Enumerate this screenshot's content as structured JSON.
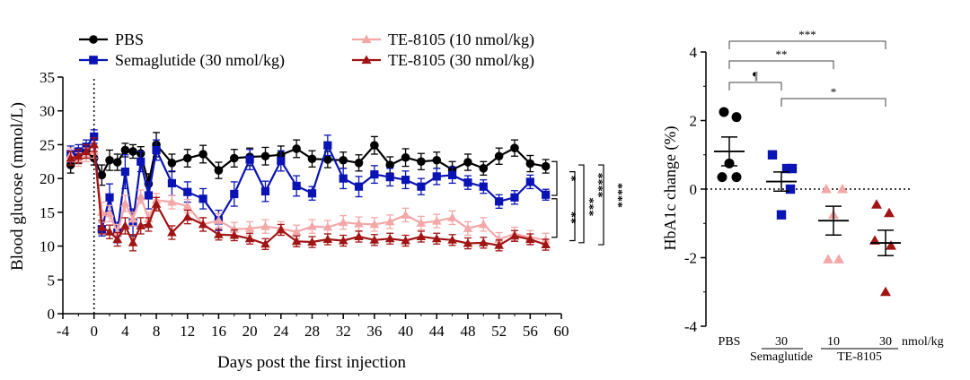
{
  "chart_data": [
    {
      "type": "line",
      "title": "",
      "xlabel": "Days post the first injection",
      "ylabel": "Blood glucose (mmol/L)",
      "xlim": [
        -4,
        60
      ],
      "ylim": [
        0,
        35
      ],
      "xticks": [
        "-4",
        "0",
        "4",
        "8",
        "12",
        "16",
        "20",
        "24",
        "28",
        "32",
        "36",
        "40",
        "44",
        "48",
        "52",
        "56",
        "60"
      ],
      "yticks": [
        "0",
        "5",
        "10",
        "15",
        "20",
        "25",
        "30",
        "35"
      ],
      "x": [
        -3,
        -2,
        -1,
        0,
        1,
        2,
        3,
        4,
        5,
        6,
        7,
        8,
        10,
        12,
        14,
        16,
        18,
        20,
        22,
        24,
        26,
        28,
        30,
        32,
        34,
        36,
        38,
        40,
        42,
        44,
        46,
        48,
        50,
        52,
        54,
        56,
        58
      ],
      "series": [
        {
          "name": "PBS",
          "color": "#000000",
          "marker": "circle",
          "values": [
            22.0,
            23.2,
            24.0,
            23.0,
            20.5,
            22.7,
            22.4,
            24.2,
            24.0,
            23.7,
            19.2,
            25.0,
            22.3,
            23.0,
            23.6,
            21.2,
            23.0,
            23.2,
            23.3,
            23.5,
            24.4,
            22.9,
            22.8,
            22.7,
            22.3,
            24.9,
            22.0,
            23.1,
            22.5,
            22.7,
            21.3,
            22.4,
            21.5,
            23.3,
            24.5,
            22.2,
            21.8
          ],
          "err": [
            1.2,
            1.0,
            1.0,
            1.0,
            1.5,
            1.5,
            1.2,
            1.0,
            1.0,
            1.0,
            1.5,
            1.8,
            1.3,
            1.3,
            1.3,
            1.2,
            1.3,
            1.3,
            1.3,
            1.3,
            1.3,
            1.2,
            1.2,
            1.2,
            1.2,
            1.3,
            1.2,
            1.3,
            1.2,
            1.2,
            1.2,
            1.2,
            1.0,
            1.2,
            1.2,
            1.2,
            1.0
          ]
        },
        {
          "name": "Semaglutide (30 nmol/kg)",
          "color": "#0a14b4",
          "marker": "square",
          "values": [
            23.6,
            24.0,
            24.7,
            26.2,
            12.5,
            17.2,
            12.0,
            21.0,
            13.5,
            22.5,
            17.5,
            24.2,
            19.3,
            18.0,
            17.0,
            13.8,
            17.7,
            22.8,
            18.1,
            22.6,
            18.9,
            17.8,
            24.9,
            20.0,
            18.8,
            20.6,
            20.2,
            19.8,
            18.8,
            20.3,
            20.5,
            19.4,
            18.8,
            16.6,
            17.2,
            19.5,
            17.6
          ],
          "err": [
            1.2,
            1.0,
            1.0,
            1.0,
            1.0,
            2.0,
            1.5,
            2.5,
            2.0,
            1.5,
            2.0,
            1.5,
            1.8,
            1.5,
            1.5,
            1.5,
            1.8,
            1.5,
            1.5,
            1.5,
            1.5,
            1.0,
            1.5,
            1.5,
            1.5,
            1.3,
            1.3,
            1.3,
            1.2,
            1.2,
            1.2,
            1.0,
            1.0,
            1.0,
            1.0,
            1.0,
            0.8
          ]
        },
        {
          "name": "TE-8105 (10 nmol/kg)",
          "color": "#f4a7a7",
          "marker": "triangle",
          "values": [
            23.5,
            22.8,
            23.5,
            24.0,
            15.0,
            14.8,
            12.0,
            16.3,
            14.0,
            17.3,
            14.0,
            16.8,
            16.5,
            15.9,
            13.2,
            13.8,
            12.5,
            12.6,
            12.9,
            12.6,
            12.1,
            12.9,
            12.8,
            13.5,
            13.3,
            13.2,
            13.6,
            14.6,
            13.4,
            13.7,
            14.2,
            12.6,
            13.2,
            11.0,
            11.8,
            11.3,
            10.9
          ],
          "err": [
            1.0,
            1.0,
            1.0,
            1.0,
            1.5,
            1.2,
            1.2,
            1.2,
            1.0,
            1.0,
            1.0,
            1.0,
            1.0,
            1.0,
            1.0,
            1.0,
            1.0,
            1.0,
            1.0,
            1.0,
            1.0,
            1.0,
            1.0,
            1.0,
            1.0,
            1.0,
            1.0,
            1.0,
            1.0,
            1.0,
            1.0,
            1.0,
            1.0,
            1.0,
            1.0,
            1.0,
            1.0
          ]
        },
        {
          "name": "TE-8105 (30 nmol/kg)",
          "color": "#a01414",
          "marker": "triangle",
          "values": [
            23.0,
            23.3,
            24.0,
            25.0,
            12.8,
            12.1,
            11.0,
            13.0,
            10.5,
            13.0,
            13.2,
            16.2,
            12.0,
            14.3,
            13.2,
            11.7,
            11.6,
            11.1,
            10.3,
            12.4,
            10.7,
            10.6,
            11.0,
            10.8,
            11.4,
            10.9,
            11.1,
            10.8,
            11.4,
            11.1,
            10.9,
            10.4,
            10.5,
            10.1,
            11.5,
            11.0,
            10.2
          ],
          "err": [
            1.0,
            1.0,
            1.0,
            1.0,
            1.0,
            1.0,
            1.0,
            1.2,
            1.2,
            1.2,
            1.0,
            1.0,
            1.0,
            1.0,
            1.0,
            0.8,
            0.8,
            0.8,
            0.8,
            0.8,
            0.8,
            0.8,
            0.8,
            0.8,
            0.8,
            0.8,
            0.8,
            0.8,
            0.8,
            0.8,
            0.8,
            0.8,
            0.8,
            0.8,
            0.8,
            0.8,
            0.8
          ]
        }
      ],
      "vline_x": 0,
      "significance": [
        {
          "label": "*",
          "from": "PBS",
          "to": "Semaglutide (30 nmol/kg)"
        },
        {
          "label": "**",
          "from": "Semaglutide (30 nmol/kg)",
          "to": "TE-8105 (30 nmol/kg)"
        },
        {
          "label": "***",
          "from": "Semaglutide (30 nmol/kg)",
          "to": "TE-8105 (10 nmol/kg)"
        },
        {
          "label": "****",
          "from": "PBS",
          "to": "TE-8105 (10 nmol/kg)"
        },
        {
          "label": "****",
          "from": "PBS",
          "to": "TE-8105 (30 nmol/kg)"
        }
      ]
    },
    {
      "type": "scatter",
      "title": "",
      "ylabel": "HbA1c change (%)",
      "ylim": [
        -4,
        4
      ],
      "yticks": [
        "-4",
        "-2",
        "0",
        "2",
        "4"
      ],
      "unit_label": "nmol/kg",
      "groups": [
        {
          "label": "PBS",
          "dose": "",
          "drug": "",
          "color": "#000000",
          "marker": "circle",
          "mean": 1.1,
          "sem": 0.42,
          "points": [
            2.25,
            2.1,
            0.75,
            0.35,
            0.35
          ]
        },
        {
          "label": "30",
          "dose": "30",
          "drug": "Semaglutide",
          "color": "#0a14b4",
          "marker": "square",
          "mean": 0.22,
          "sem": 0.28,
          "points": [
            1.0,
            0.6,
            0.6,
            0.0,
            -0.75
          ]
        },
        {
          "label": "10",
          "dose": "10",
          "drug": "TE-8105",
          "color": "#f4a7a7",
          "marker": "triangle",
          "mean": -0.92,
          "sem": 0.42,
          "points": [
            0.0,
            0.0,
            -0.75,
            -2.05,
            -2.05
          ]
        },
        {
          "label": "30",
          "dose": "30",
          "drug": "TE-8105",
          "color": "#a01414",
          "marker": "triangle",
          "mean": -1.57,
          "sem": 0.37,
          "points": [
            -0.45,
            -0.7,
            -1.5,
            -1.65,
            -3.0
          ]
        }
      ],
      "drug_labels": [
        "Semaglutide",
        "TE-8105"
      ],
      "brackets": [
        {
          "label": "***",
          "from": 0,
          "to": 3
        },
        {
          "label": "**",
          "from": 0,
          "to": 2
        },
        {
          "label": "¶",
          "from": 0,
          "to": 1
        },
        {
          "label": "*",
          "from": 1,
          "to": 3
        }
      ]
    }
  ]
}
